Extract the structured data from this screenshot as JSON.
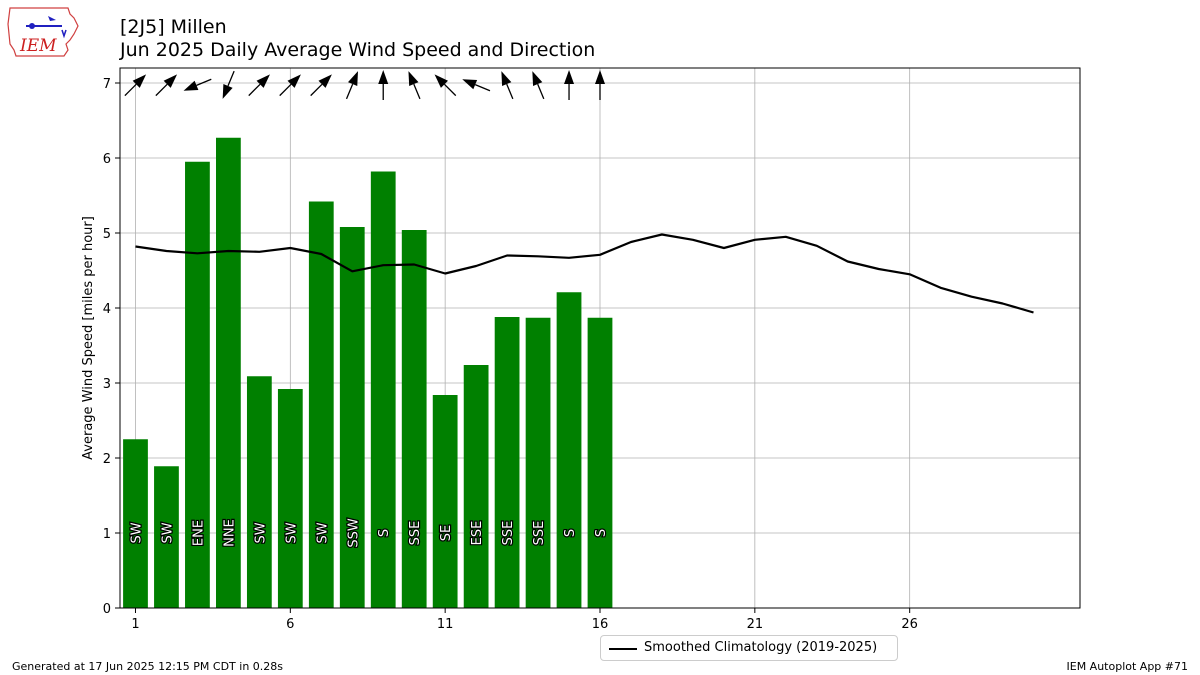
{
  "header": {
    "title": "[2J5] Millen",
    "subtitle": "Jun 2025 Daily Average Wind Speed and Direction"
  },
  "logo": {
    "text": "IEM"
  },
  "footer": {
    "generated": "Generated at 17 Jun 2025 12:15 PM CDT in 0.28s",
    "app": "IEM Autoplot App #71"
  },
  "colors": {
    "bar": "#008000",
    "climo_line": "#000000",
    "grid": "#b0b0b0"
  },
  "chart_data": {
    "type": "bar",
    "ylabel": "Average Wind Speed [miles per hour]",
    "xlabel": "",
    "xlim": [
      0.5,
      31.5
    ],
    "ylim": [
      0,
      7.2
    ],
    "xticks": [
      1,
      6,
      11,
      16,
      21,
      26
    ],
    "yticks": [
      0,
      1,
      2,
      3,
      4,
      5,
      6,
      7
    ],
    "grid": true,
    "legend_position": "bottom-center",
    "bars": {
      "days": [
        1,
        2,
        3,
        4,
        5,
        6,
        7,
        8,
        9,
        10,
        11,
        12,
        13,
        14,
        15,
        16
      ],
      "values": [
        2.25,
        1.89,
        5.95,
        6.27,
        3.09,
        2.92,
        5.42,
        5.08,
        5.82,
        5.04,
        2.84,
        3.24,
        3.88,
        3.87,
        4.21,
        3.87
      ],
      "direction_labels": [
        "SW",
        "SW",
        "ENE",
        "NNE",
        "SW",
        "SW",
        "SW",
        "SSW",
        "S",
        "SSE",
        "SE",
        "ESE",
        "SSE",
        "SSE",
        "S",
        "S"
      ],
      "direction_degrees": [
        225,
        225,
        67.5,
        22.5,
        225,
        225,
        225,
        202.5,
        180,
        157.5,
        135,
        112.5,
        157.5,
        157.5,
        180,
        180
      ]
    },
    "series": [
      {
        "name": "Smoothed Climatology (2019-2025)",
        "x": [
          1,
          2,
          3,
          4,
          5,
          6,
          7,
          8,
          9,
          10,
          11,
          12,
          13,
          14,
          15,
          16,
          17,
          18,
          19,
          20,
          21,
          22,
          23,
          24,
          25,
          26,
          27,
          28,
          29,
          30
        ],
        "values": [
          4.82,
          4.76,
          4.73,
          4.76,
          4.75,
          4.8,
          4.72,
          4.49,
          4.57,
          4.58,
          4.46,
          4.56,
          4.7,
          4.69,
          4.67,
          4.71,
          4.88,
          4.98,
          4.91,
          4.8,
          4.91,
          4.95,
          4.83,
          4.62,
          4.52,
          4.45,
          4.27,
          4.15,
          4.06,
          3.94
        ]
      }
    ]
  }
}
